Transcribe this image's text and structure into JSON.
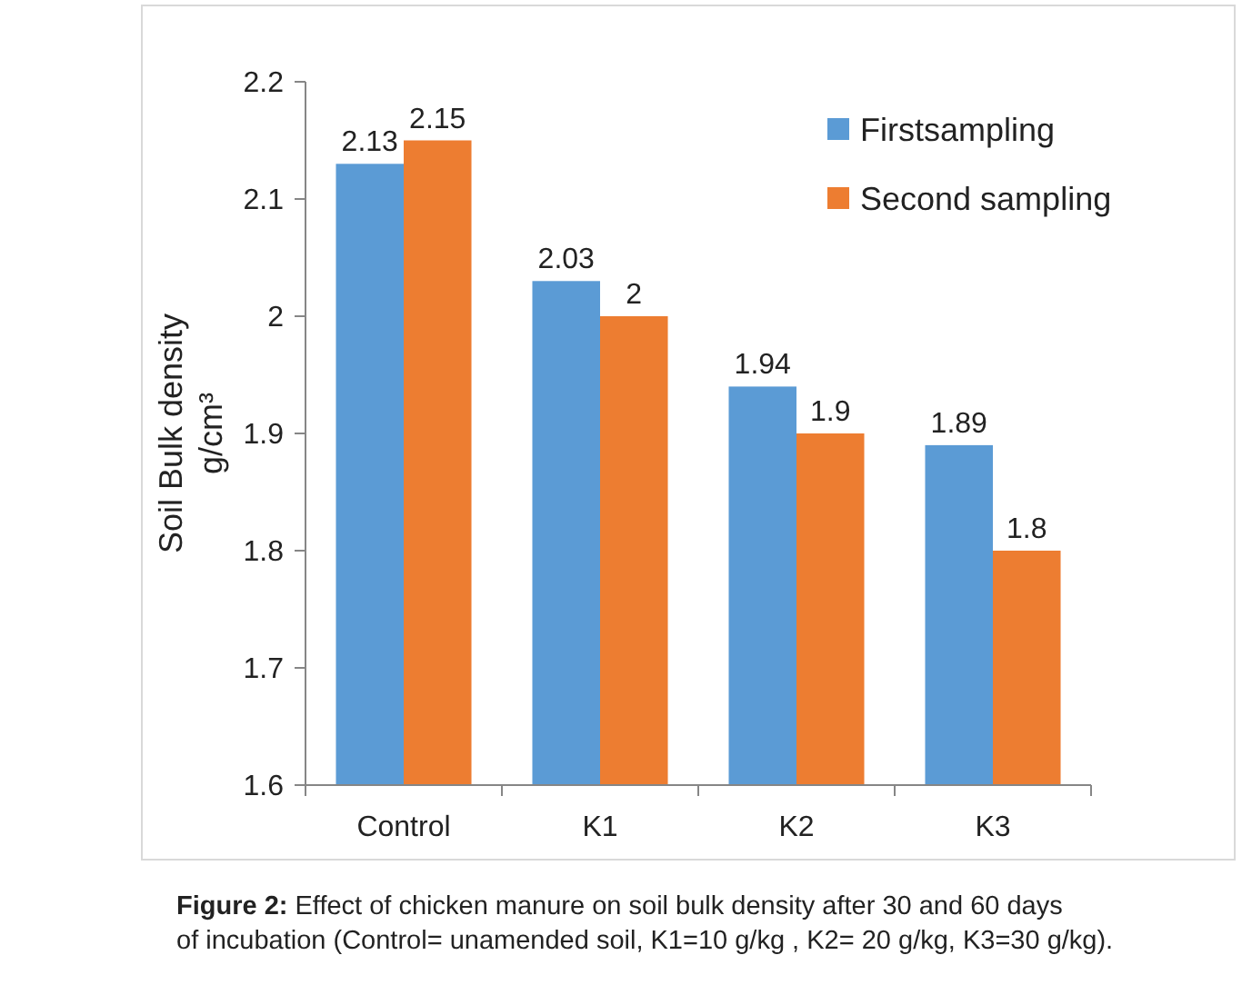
{
  "chart_data": {
    "type": "bar",
    "ylabel": "Soil Bulk density g/cm³",
    "categories": [
      "Control",
      "K1",
      "K2",
      "K3"
    ],
    "series": [
      {
        "name": "Firstsampling",
        "color": "#5b9bd5",
        "values": [
          2.13,
          2.03,
          1.94,
          1.89
        ]
      },
      {
        "name": "Second sampling",
        "color": "#ed7d31",
        "values": [
          2.15,
          2,
          1.9,
          1.8
        ]
      }
    ],
    "ylim": [
      1.6,
      2.2
    ],
    "yticks": [
      1.6,
      1.7,
      1.8,
      1.9,
      2,
      2.1,
      2.2
    ],
    "data_labels": true,
    "legend": "top right",
    "grid": false,
    "annotations": [
      "Figure 2: Effect of chicken manure on soil bulk density after 30 and 60 days of incubation (Control= unamended soil, K1=10 g/kg , K2= 20 g/kg, K3=30 g/kg)."
    ]
  }
}
